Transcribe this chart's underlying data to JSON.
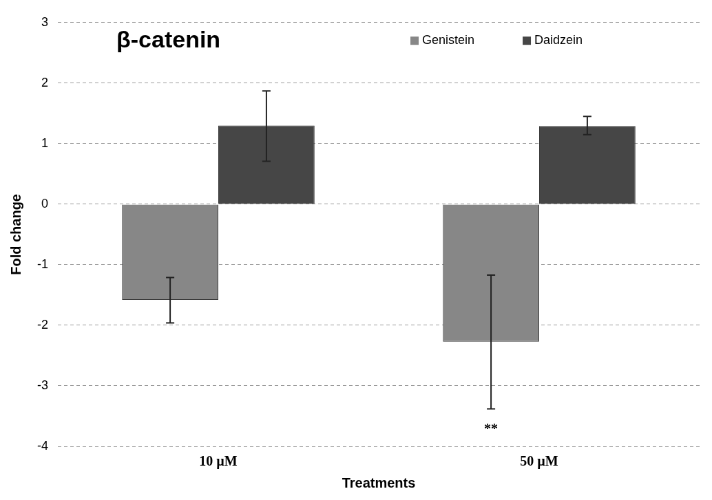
{
  "chart_data": {
    "type": "bar",
    "title": "β-catenin",
    "xlabel": "Treatments",
    "ylabel": "Fold change",
    "categories": [
      "10 µM",
      "50 µM"
    ],
    "series": [
      {
        "name": "Genistein",
        "color": "#878787",
        "values": [
          -1.58,
          -2.27
        ],
        "errors": [
          [
            -1.96,
            -1.21
          ],
          [
            -3.38,
            -1.17
          ]
        ]
      },
      {
        "name": "Daidzein",
        "color": "#464646",
        "values": [
          1.3,
          1.29
        ],
        "errors": [
          [
            0.71,
            1.87
          ],
          [
            1.15,
            1.45
          ]
        ]
      }
    ],
    "ylim": [
      -4,
      3
    ],
    "yticks": [
      -4,
      -3,
      -2,
      -1,
      0,
      1,
      2,
      3
    ],
    "grid": "y",
    "legend": "top right",
    "annotations": [
      "**"
    ]
  }
}
